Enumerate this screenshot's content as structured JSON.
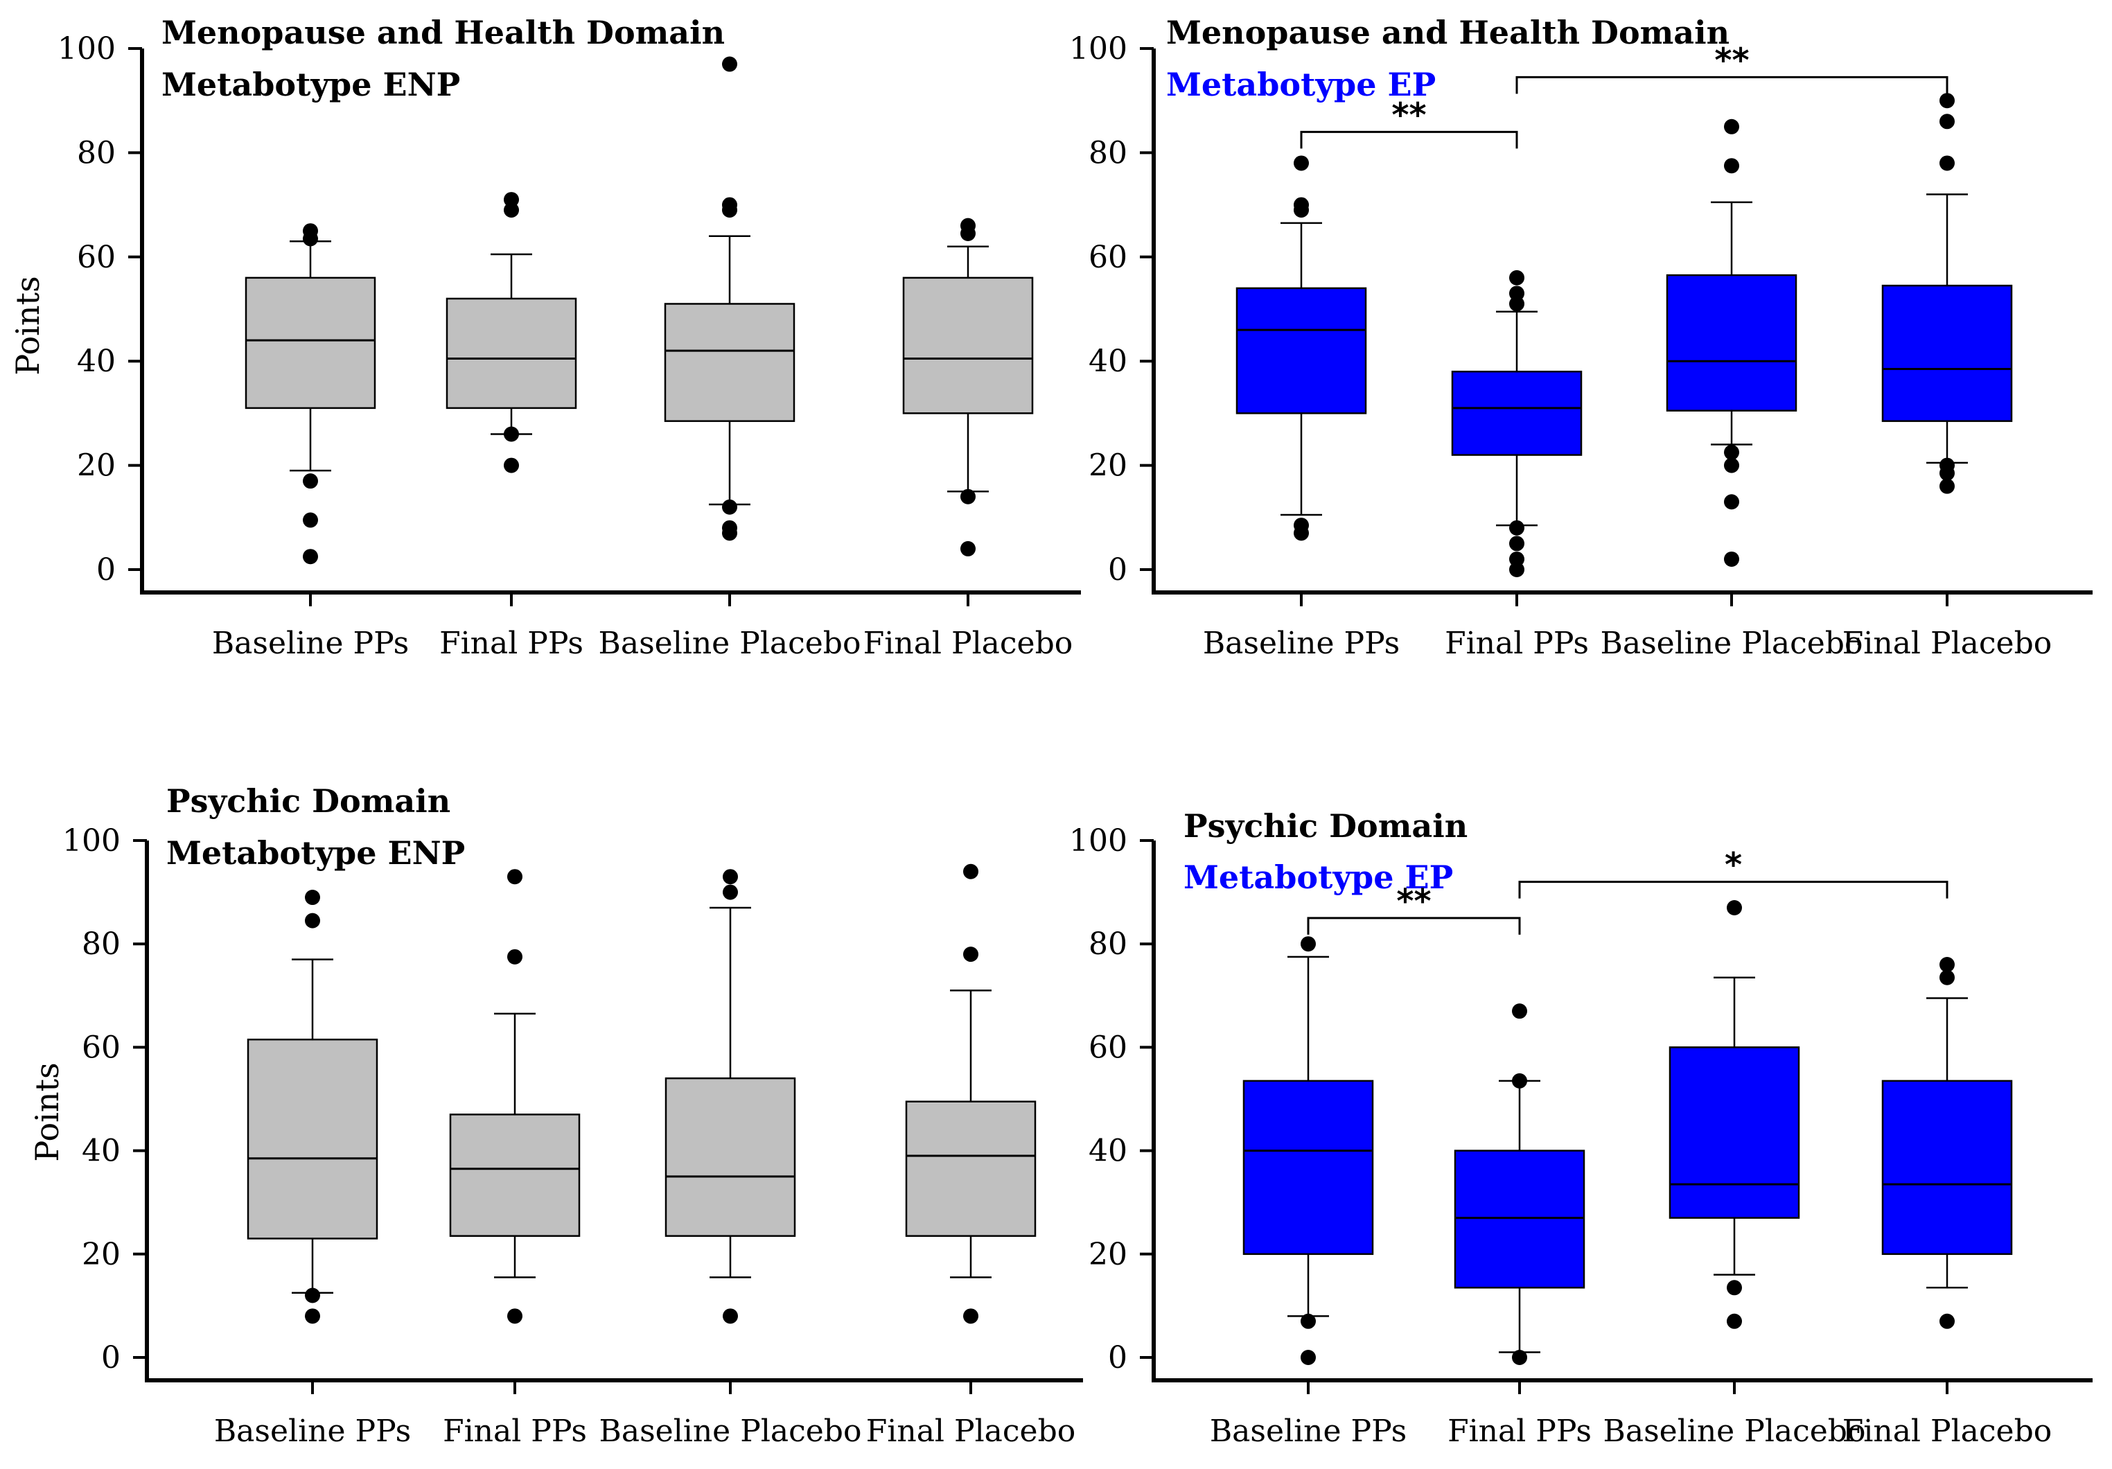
{
  "colors": {
    "enp_box": "#c0c0c0",
    "ep_box": "#0000ff",
    "ep_title": "#0000ff",
    "black": "#000000"
  },
  "chart_data": [
    {
      "type": "box",
      "title": "Menopause and Health Domain",
      "subtitle": "Metabotype ENP",
      "subtitle_color": "#000000",
      "box_color": "#c0c0c0",
      "ylabel": "Points",
      "ylim": [
        0,
        100
      ],
      "yticks": [
        "0",
        "20",
        "40",
        "60",
        "80",
        "100"
      ],
      "categories": [
        "Baseline PPs",
        "Final PPs",
        "Baseline Placebo",
        "Final Placebo"
      ],
      "boxes": [
        {
          "whisker_low": 19,
          "q1": 31,
          "median": 44,
          "q3": 56,
          "whisker_high": 63,
          "outliers": [
            2.5,
            9.5,
            17,
            63.5,
            65
          ]
        },
        {
          "whisker_low": 26,
          "q1": 31,
          "median": 40.5,
          "q3": 52,
          "whisker_high": 60.5,
          "outliers": [
            20,
            26,
            69,
            71
          ]
        },
        {
          "whisker_low": 12.5,
          "q1": 28.5,
          "median": 42,
          "q3": 51,
          "whisker_high": 64,
          "outliers": [
            7,
            8,
            12,
            69,
            70,
            97
          ]
        },
        {
          "whisker_low": 15,
          "q1": 30,
          "median": 40.5,
          "q3": 56,
          "whisker_high": 62,
          "outliers": [
            4,
            14,
            64.5,
            66
          ]
        }
      ],
      "significance": []
    },
    {
      "type": "box",
      "title": "Menopause and Health Domain",
      "subtitle": "Metabotype EP",
      "subtitle_color": "#0000ff",
      "box_color": "#0000ff",
      "ylabel": "",
      "ylim": [
        0,
        100
      ],
      "yticks": [
        "0",
        "20",
        "40",
        "60",
        "80",
        "100"
      ],
      "categories": [
        "Baseline PPs",
        "Final PPs",
        "Baseline Placebo",
        "Final Placebo"
      ],
      "boxes": [
        {
          "whisker_low": 10.5,
          "q1": 30,
          "median": 46,
          "q3": 54,
          "whisker_high": 66.5,
          "outliers": [
            7,
            8.5,
            69,
            70,
            78
          ]
        },
        {
          "whisker_low": 8.5,
          "q1": 22,
          "median": 31,
          "q3": 38,
          "whisker_high": 49.5,
          "outliers": [
            0,
            2,
            5,
            8,
            51,
            53,
            56
          ]
        },
        {
          "whisker_low": 24,
          "q1": 30.5,
          "median": 40,
          "q3": 56.5,
          "whisker_high": 70.5,
          "outliers": [
            2,
            13,
            20,
            22.5,
            77.5,
            85
          ]
        },
        {
          "whisker_low": 20.5,
          "q1": 28.5,
          "median": 38.5,
          "q3": 54.5,
          "whisker_high": 72,
          "outliers": [
            16,
            18.5,
            20,
            78,
            86,
            90
          ]
        }
      ],
      "significance": [
        {
          "from": 0,
          "to": 1,
          "label": "**",
          "level": 84
        },
        {
          "from": 1,
          "to": 3,
          "label": "**",
          "level": 94.5
        }
      ]
    },
    {
      "type": "box",
      "title": "Psychic Domain",
      "subtitle": "Metabotype ENP",
      "subtitle_color": "#000000",
      "box_color": "#c0c0c0",
      "ylabel": "Points",
      "ylim": [
        0,
        100
      ],
      "yticks": [
        "0",
        "20",
        "40",
        "60",
        "80",
        "100"
      ],
      "categories": [
        "Baseline PPs",
        "Final PPs",
        "Baseline Placebo",
        "Final Placebo"
      ],
      "boxes": [
        {
          "whisker_low": 12.5,
          "q1": 23,
          "median": 38.5,
          "q3": 61.5,
          "whisker_high": 77,
          "outliers": [
            8,
            12,
            84.5,
            89
          ]
        },
        {
          "whisker_low": 15.5,
          "q1": 23.5,
          "median": 36.5,
          "q3": 47,
          "whisker_high": 66.5,
          "outliers": [
            8,
            77.5,
            93
          ]
        },
        {
          "whisker_low": 15.5,
          "q1": 23.5,
          "median": 35,
          "q3": 54,
          "whisker_high": 87,
          "outliers": [
            8,
            90,
            93
          ]
        },
        {
          "whisker_low": 15.5,
          "q1": 23.5,
          "median": 39,
          "q3": 49.5,
          "whisker_high": 71,
          "outliers": [
            8,
            78,
            94
          ]
        }
      ],
      "significance": []
    },
    {
      "type": "box",
      "title": "Psychic Domain",
      "subtitle": "Metabotype EP",
      "subtitle_color": "#0000ff",
      "box_color": "#0000ff",
      "ylabel": "",
      "ylim": [
        0,
        100
      ],
      "yticks": [
        "0",
        "20",
        "40",
        "60",
        "80",
        "100"
      ],
      "categories": [
        "Baseline PPs",
        "Final PPs",
        "Baseline Placebo",
        "Final Placebo"
      ],
      "boxes": [
        {
          "whisker_low": 8,
          "q1": 20,
          "median": 40,
          "q3": 53.5,
          "whisker_high": 77.5,
          "outliers": [
            0,
            7,
            80
          ]
        },
        {
          "whisker_low": 1,
          "q1": 13.5,
          "median": 27,
          "q3": 40,
          "whisker_high": 53.5,
          "outliers": [
            0,
            53.5,
            67
          ]
        },
        {
          "whisker_low": 16,
          "q1": 27,
          "median": 33.5,
          "q3": 60,
          "whisker_high": 73.5,
          "outliers": [
            7,
            13.5,
            87
          ]
        },
        {
          "whisker_low": 13.5,
          "q1": 20,
          "median": 33.5,
          "q3": 53.5,
          "whisker_high": 69.5,
          "outliers": [
            7,
            73.5,
            76
          ]
        }
      ],
      "significance": [
        {
          "from": 0,
          "to": 1,
          "label": "**",
          "level": 85
        },
        {
          "from": 1,
          "to": 3,
          "label": "*",
          "level": 92
        }
      ]
    }
  ]
}
